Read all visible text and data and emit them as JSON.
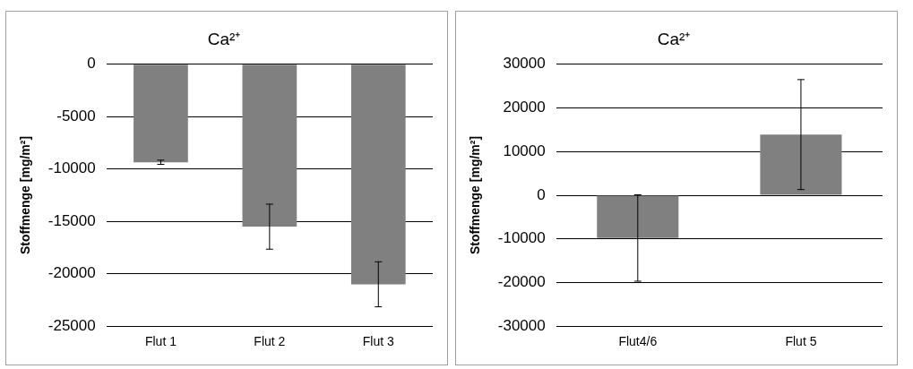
{
  "chart_data": [
    {
      "type": "bar",
      "title": "Ca²⁺",
      "ylabel": "Stoffmenge [mg/m²]",
      "categories": [
        "Flut 1",
        "Flut 2",
        "Flut 3"
      ],
      "values": [
        -9350,
        -15500,
        -21000
      ],
      "errors": [
        200,
        2150,
        2150
      ],
      "color": "#808080",
      "ylim": [
        -25000,
        0
      ],
      "yticks": [
        -25000,
        -20000,
        -15000,
        -10000,
        -5000,
        0
      ],
      "grid": "y",
      "legend": false
    },
    {
      "type": "bar",
      "title": "Ca²⁺",
      "ylabel": "Stoffmenge [mg/m²]",
      "categories": [
        "Flut4/6",
        "Flut 5"
      ],
      "values": [
        -9800,
        13900
      ],
      "errors": [
        9900,
        12600
      ],
      "color": "#808080",
      "ylim": [
        -30000,
        30000
      ],
      "yticks": [
        -30000,
        -20000,
        -10000,
        0,
        10000,
        20000,
        30000
      ],
      "grid": "y",
      "legend": false
    }
  ]
}
